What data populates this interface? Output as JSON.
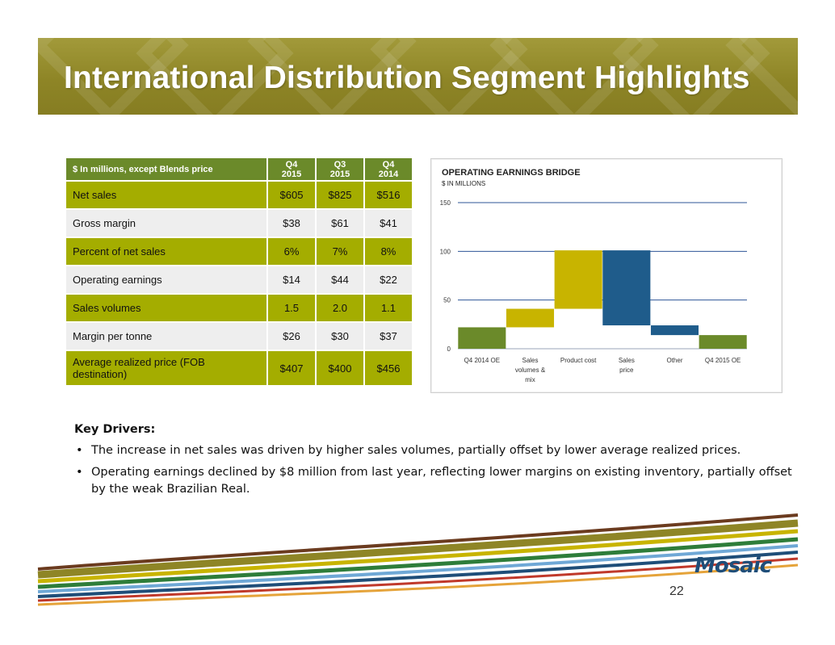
{
  "slide": {
    "title": "International Distribution Segment Highlights",
    "page_number": "22",
    "logo_text": "Mosaic",
    "colors": {
      "banner": "#8e8526",
      "table_header": "#6b8a2a",
      "row_highlight": "#a4ad00",
      "row_plain": "#eeeeee"
    }
  },
  "table": {
    "headers": [
      "$ In millions, except Blends price",
      "Q4 2015",
      "Q3 2015",
      "Q4 2014"
    ],
    "rows": [
      [
        "Net sales",
        "$605",
        "$825",
        "$516"
      ],
      [
        "Gross margin",
        "$38",
        "$61",
        "$41"
      ],
      [
        "Percent of net sales",
        "6%",
        "7%",
        "8%"
      ],
      [
        "Operating earnings",
        "$14",
        "$44",
        "$22"
      ],
      [
        "Sales volumes",
        "1.5",
        "2.0",
        "1.1"
      ],
      [
        "Margin per tonne",
        "$26",
        "$30",
        "$37"
      ],
      [
        "Average realized price (FOB destination)",
        "$407",
        "$400",
        "$456"
      ]
    ]
  },
  "chart_data": {
    "type": "bar",
    "subtype": "waterfall",
    "title": "OPERATING EARNINGS BRIDGE",
    "subtitle": "$ IN MILLIONS",
    "categories": [
      "Q4 2014 OE",
      "Sales volumes & mix",
      "Product cost",
      "Sales price",
      "Other",
      "Q4 2015 OE"
    ],
    "category_lines": [
      [
        "Q4 2014 OE"
      ],
      [
        "Sales",
        "volumes &",
        "mix"
      ],
      [
        "Product cost"
      ],
      [
        "Sales",
        "price"
      ],
      [
        "Other"
      ],
      [
        "Q4 2015 OE"
      ]
    ],
    "bars": [
      {
        "start": 0,
        "end": 22,
        "color": "#6b8a2a"
      },
      {
        "start": 22,
        "end": 41,
        "color": "#c8b400"
      },
      {
        "start": 41,
        "end": 101,
        "color": "#c8b400"
      },
      {
        "start": 101,
        "end": 24,
        "color": "#1f5c8b"
      },
      {
        "start": 24,
        "end": 14,
        "color": "#1f5c8b"
      },
      {
        "start": 0,
        "end": 14,
        "color": "#6b8a2a"
      }
    ],
    "ylim": [
      0,
      150
    ],
    "yticks": [
      0,
      50,
      100,
      150
    ],
    "grid": true,
    "gridline_color": "#2e5597"
  },
  "key_drivers": {
    "heading": "Key  Drivers:",
    "bullets": [
      "The increase in net sales was driven by higher sales volumes, partially offset by lower average realized prices.",
      "Operating earnings declined by $8 million from last year, reflecting lower margins on existing inventory, partially offset by the weak Brazilian Real."
    ]
  }
}
